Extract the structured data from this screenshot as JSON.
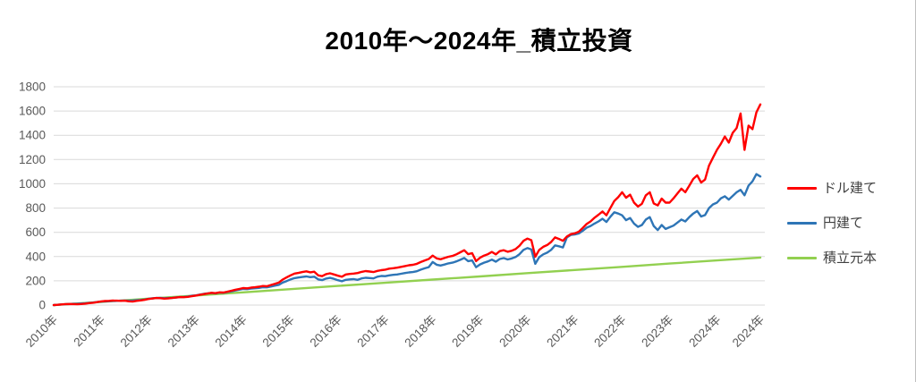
{
  "title": "2010年～2024年_積立投資",
  "colors": {
    "usd_line": "#FF0000",
    "jpy_line": "#2E75B6",
    "principal_line": "#92D050",
    "axis_label": "#595959",
    "gridline": "#D9D9D9",
    "frame_border": "#BFBFBF",
    "legend_text": "#404040"
  },
  "legend": [
    {
      "label": "ドル建て",
      "color": "#FF0000"
    },
    {
      "label": "円建て",
      "color": "#2E75B6"
    },
    {
      "label": "積立元本",
      "color": "#92D050"
    }
  ],
  "chart_data": {
    "type": "line",
    "title": "2010年～2024年_積立投資",
    "x_unit": "month (Jan 2010 – Dec 2024, 180 points)",
    "x_tick_labels": [
      "2010年",
      "2011年",
      "2012年",
      "2013年",
      "2014年",
      "2015年",
      "2016年",
      "2017年",
      "2018年",
      "2019年",
      "2020年",
      "2021年",
      "2022年",
      "2023年",
      "2024年",
      "2024年"
    ],
    "x_tick_indices": [
      0,
      12,
      24,
      36,
      48,
      60,
      72,
      84,
      96,
      108,
      120,
      132,
      144,
      156,
      168,
      179
    ],
    "y_ticks": [
      0,
      200,
      400,
      600,
      800,
      1000,
      1200,
      1400,
      1600,
      1800
    ],
    "ylim": [
      0,
      1800
    ],
    "grid": "horizontal-only",
    "legend_position": "right",
    "series": [
      {
        "name": "ドル建て",
        "color": "#FF0000",
        "values": [
          0,
          2,
          5,
          8,
          9,
          8,
          7,
          9,
          12,
          16,
          19,
          24,
          30,
          33,
          35,
          37,
          36,
          35,
          36,
          31,
          29,
          35,
          38,
          43,
          50,
          54,
          58,
          57,
          53,
          55,
          58,
          62,
          66,
          65,
          68,
          73,
          78,
          84,
          90,
          95,
          101,
          98,
          105,
          103,
          110,
          118,
          126,
          133,
          140,
          138,
          144,
          147,
          151,
          157,
          155,
          165,
          175,
          185,
          210,
          228,
          245,
          260,
          265,
          272,
          278,
          270,
          275,
          245,
          238,
          255,
          262,
          252,
          242,
          234,
          252,
          257,
          260,
          264,
          274,
          280,
          277,
          272,
          282,
          288,
          292,
          300,
          304,
          308,
          315,
          322,
          328,
          332,
          340,
          355,
          368,
          380,
          408,
          385,
          378,
          388,
          398,
          405,
          418,
          435,
          452,
          420,
          428,
          362,
          390,
          408,
          420,
          438,
          418,
          445,
          452,
          440,
          448,
          462,
          490,
          530,
          548,
          535,
          398,
          455,
          480,
          495,
          520,
          558,
          545,
          530,
          565,
          585,
          592,
          605,
          635,
          668,
          690,
          720,
          745,
          772,
          740,
          800,
          858,
          890,
          930,
          885,
          910,
          845,
          812,
          835,
          905,
          930,
          838,
          822,
          878,
          845,
          845,
          880,
          920,
          960,
          930,
          985,
          1040,
          1070,
          1010,
          1035,
          1150,
          1215,
          1280,
          1330,
          1390,
          1340,
          1420,
          1460,
          1580,
          1280,
          1480,
          1450,
          1590,
          1655
        ]
      },
      {
        "name": "円建て",
        "color": "#2E75B6",
        "values": [
          0,
          2,
          5,
          7,
          9,
          10,
          11,
          13,
          15,
          18,
          21,
          25,
          28,
          30,
          32,
          34,
          35,
          36,
          37,
          36,
          37,
          40,
          42,
          46,
          52,
          55,
          58,
          59,
          57,
          58,
          60,
          63,
          66,
          67,
          71,
          77,
          80,
          86,
          92,
          96,
          100,
          97,
          103,
          101,
          107,
          113,
          120,
          127,
          133,
          131,
          136,
          139,
          142,
          147,
          146,
          153,
          160,
          166,
          185,
          198,
          212,
          222,
          227,
          232,
          236,
          230,
          234,
          212,
          206,
          218,
          224,
          216,
          205,
          196,
          208,
          212,
          214,
          208,
          220,
          225,
          223,
          220,
          234,
          240,
          238,
          245,
          249,
          252,
          258,
          264,
          269,
          272,
          279,
          292,
          303,
          313,
          355,
          333,
          326,
          334,
          344,
          350,
          360,
          373,
          388,
          362,
          368,
          312,
          335,
          350,
          360,
          375,
          358,
          380,
          387,
          376,
          384,
          396,
          420,
          455,
          470,
          458,
          340,
          395,
          418,
          432,
          455,
          492,
          485,
          475,
          558,
          578,
          582,
          590,
          612,
          638,
          652,
          672,
          690,
          712,
          685,
          728,
          765,
          755,
          740,
          700,
          718,
          672,
          645,
          660,
          705,
          725,
          652,
          618,
          660,
          628,
          642,
          655,
          680,
          705,
          690,
          725,
          755,
          775,
          730,
          742,
          800,
          830,
          845,
          880,
          897,
          870,
          900,
          930,
          950,
          905,
          985,
          1020,
          1080,
          1060
        ]
      },
      {
        "name": "積立元本",
        "color": "#92D050",
        "shape": "linear",
        "x_indices": [
          0,
          12,
          24,
          36,
          48,
          60,
          72,
          84,
          96,
          108,
          120,
          132,
          144,
          156,
          168,
          179
        ],
        "values": [
          0,
          26,
          53,
          79,
          105,
          131,
          158,
          184,
          210,
          236,
          263,
          289,
          315,
          342,
          368,
          392
        ]
      }
    ]
  }
}
